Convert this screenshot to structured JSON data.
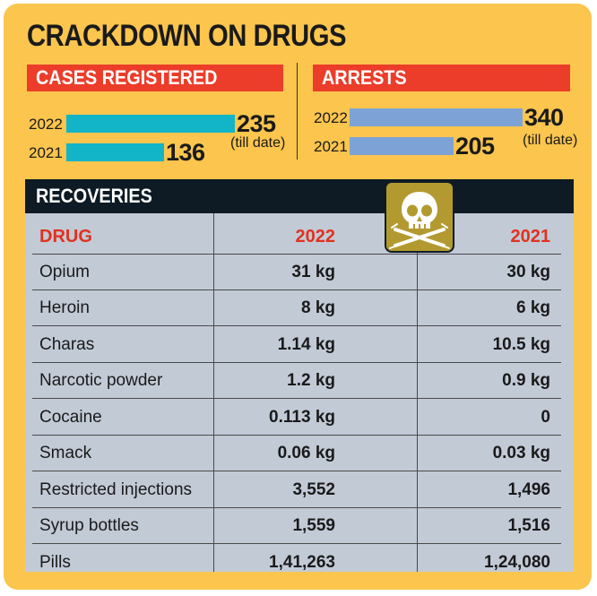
{
  "title": "CRACKDOWN ON DRUGS",
  "cases": {
    "label": "CASES REGISTERED",
    "rows": [
      {
        "year": "2022",
        "value": 235
      },
      {
        "year": "2021",
        "value": 136
      }
    ],
    "note": "(till date)",
    "color": "#12b4c8"
  },
  "arrests": {
    "label": "ARRESTS",
    "rows": [
      {
        "year": "2022",
        "value": 340
      },
      {
        "year": "2021",
        "value": 205
      }
    ],
    "note": "(till date)",
    "color": "#7da3d6"
  },
  "recoveries": {
    "label": "RECOVERIES",
    "headers": {
      "drug": "DRUG",
      "y2022": "2022",
      "y2021": "2021"
    },
    "rows": [
      {
        "drug": "Opium",
        "y2022": "31 kg",
        "y2021": "30 kg"
      },
      {
        "drug": "Heroin",
        "y2022": "8 kg",
        "y2021": "6 kg"
      },
      {
        "drug": "Charas",
        "y2022": "1.14 kg",
        "y2021": "10.5 kg"
      },
      {
        "drug": "Narcotic powder",
        "y2022": "1.2 kg",
        "y2021": "0.9 kg"
      },
      {
        "drug": "Cocaine",
        "y2022": "0.113 kg",
        "y2021": "0"
      },
      {
        "drug": "Smack",
        "y2022": "0.06 kg",
        "y2021": "0.03 kg"
      },
      {
        "drug": "Restricted injections",
        "y2022": "3,552",
        "y2021": "1,496"
      },
      {
        "drug": "Syrup bottles",
        "y2022": "1,559",
        "y2021": "1,516"
      },
      {
        "drug": "Pills",
        "y2022": "1,41,263",
        "y2021": "1,24,080"
      }
    ]
  },
  "icon": "skull-crossed-syringes-icon",
  "chart_data": [
    {
      "type": "bar",
      "title": "CASES REGISTERED",
      "categories": [
        "2022",
        "2021"
      ],
      "values": [
        235,
        136
      ],
      "annotations": [
        "(till date)"
      ]
    },
    {
      "type": "bar",
      "title": "ARRESTS",
      "categories": [
        "2022",
        "2021"
      ],
      "values": [
        340,
        205
      ],
      "annotations": [
        "(till date)"
      ]
    },
    {
      "type": "table",
      "title": "RECOVERIES",
      "columns": [
        "DRUG",
        "2022",
        "2021"
      ],
      "rows": [
        [
          "Opium",
          "31 kg",
          "30 kg"
        ],
        [
          "Heroin",
          "8 kg",
          "6 kg"
        ],
        [
          "Charas",
          "1.14 kg",
          "10.5 kg"
        ],
        [
          "Narcotic powder",
          "1.2 kg",
          "0.9 kg"
        ],
        [
          "Cocaine",
          "0.113 kg",
          "0"
        ],
        [
          "Smack",
          "0.06 kg",
          "0.03 kg"
        ],
        [
          "Restricted injections",
          "3,552",
          "1,496"
        ],
        [
          "Syrup bottles",
          "1,559",
          "1,516"
        ],
        [
          "Pills",
          "1,41,263",
          "1,24,080"
        ]
      ]
    }
  ]
}
